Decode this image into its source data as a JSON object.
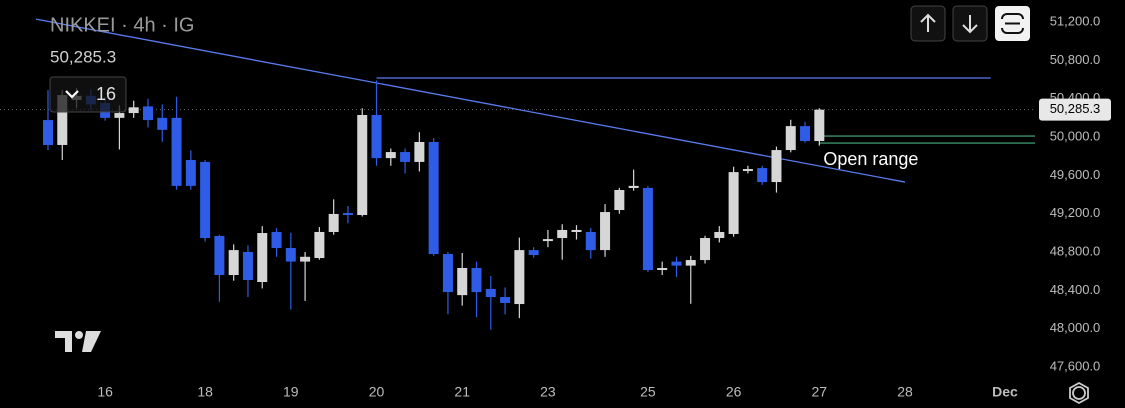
{
  "chart_data": {
    "type": "candlestick",
    "title": "NIKKEI · 4h · IG",
    "last_price": {
      "value": 50285.3,
      "label": "50,285.3"
    },
    "interval_count": "16",
    "x": [
      0,
      1,
      2,
      3,
      4,
      5,
      6,
      7,
      8,
      9,
      10,
      11,
      12,
      13,
      14,
      15,
      16,
      17,
      18,
      19,
      20,
      21,
      22,
      23,
      24,
      25,
      26,
      27,
      28,
      29,
      30,
      31,
      32,
      33,
      34,
      35,
      36,
      37,
      38,
      39,
      40,
      41,
      42,
      43,
      44,
      45,
      46,
      47,
      48,
      49,
      50,
      51,
      52,
      53,
      54
    ],
    "open": [
      50177,
      49917,
      50386,
      50430,
      50355,
      50200,
      50250,
      50320,
      50200,
      50200,
      49760,
      49740,
      48967,
      48560,
      48800,
      48487,
      49009,
      48842,
      48700,
      48737,
      49009,
      49207,
      49186,
      50230,
      49780,
      49843,
      49740,
      49948,
      48779,
      48350,
      48633,
      48414,
      48330,
      48257,
      48820,
      48914,
      48946,
      49009,
      49009,
      48820,
      49238,
      49468,
      49468,
      48612,
      48700,
      48658,
      48716,
      48946,
      48988,
      49645,
      49676,
      49530,
      49864,
      50114,
      49958
    ],
    "high": [
      50490,
      50490,
      50510,
      50500,
      50420,
      50330,
      50380,
      50400,
      50340,
      50420,
      49860,
      49760,
      48980,
      48880,
      48870,
      49070,
      49050,
      49000,
      48800,
      49060,
      49350,
      49280,
      50300,
      50590,
      49880,
      49880,
      50050,
      49990,
      48800,
      48790,
      48700,
      48550,
      48430,
      48950,
      48850,
      49030,
      49090,
      49080,
      49050,
      49300,
      49470,
      49660,
      49490,
      48700,
      48750,
      48760,
      48970,
      49070,
      49690,
      49700,
      49700,
      49900,
      50180,
      50160,
      50300
    ],
    "low": [
      49864,
      49760,
      50300,
      50280,
      50170,
      49870,
      50200,
      50100,
      49950,
      49450,
      49450,
      48910,
      48280,
      48500,
      48330,
      48420,
      48750,
      48200,
      48290,
      48720,
      48980,
      49100,
      49170,
      49700,
      49700,
      49620,
      49640,
      48760,
      48150,
      48240,
      48120,
      47990,
      48150,
      48110,
      48740,
      48850,
      48720,
      48930,
      48730,
      48750,
      49200,
      49440,
      48590,
      48560,
      48540,
      48260,
      48680,
      48900,
      48960,
      49620,
      49500,
      49420,
      49840,
      49940,
      49910
    ],
    "close": [
      49917,
      50438,
      50430,
      50340,
      50200,
      50250,
      50310,
      50177,
      50075,
      49490,
      49490,
      48946,
      48560,
      48820,
      48508,
      48998,
      48842,
      48700,
      48750,
      49009,
      49197,
      49186,
      50230,
      49780,
      49843,
      49740,
      49948,
      48779,
      48382,
      48633,
      48382,
      48330,
      48268,
      48820,
      48768,
      48935,
      49030,
      49030,
      48820,
      49217,
      49447,
      49490,
      48612,
      48633,
      48658,
      48716,
      48946,
      49009,
      49634,
      49666,
      49530,
      49864,
      50114,
      49958,
      50285.3
    ],
    "up_color": "#d6d6d6",
    "down_color": "#2e5ce6",
    "trendline": {
      "x": [
        -0.84,
        60
      ],
      "y": [
        51230,
        49530
      ],
      "color": "#5a7bef"
    },
    "resistance": {
      "x": [
        23,
        66
      ],
      "y": [
        50616,
        50616
      ],
      "color": "#5a7bef"
    },
    "open_range": {
      "label": "Open range",
      "x": [
        54,
        69.1
      ],
      "high": 50010,
      "low": 49937,
      "color": "#3d8f6a"
    },
    "xlim": [
      -3.36,
      69.1
    ],
    "ylim": [
      47172,
      51430
    ],
    "xticks": [
      {
        "value": 4,
        "label": "16"
      },
      {
        "value": 11,
        "label": "18"
      },
      {
        "value": 17,
        "label": "19"
      },
      {
        "value": 23,
        "label": "20"
      },
      {
        "value": 29,
        "label": "21"
      },
      {
        "value": 35,
        "label": "23"
      },
      {
        "value": 42,
        "label": "25"
      },
      {
        "value": 48,
        "label": "26"
      },
      {
        "value": 54,
        "label": "27"
      },
      {
        "value": 60,
        "label": "28"
      },
      {
        "value": 67,
        "label": "Dec"
      }
    ],
    "yticks": [
      {
        "value": 51200,
        "label": "51,200.0"
      },
      {
        "value": 50800,
        "label": "50,800.0"
      },
      {
        "value": 50400,
        "label": "50,400.0"
      },
      {
        "value": 50000,
        "label": "50,000.0"
      },
      {
        "value": 49600,
        "label": "49,600.0"
      },
      {
        "value": 49200,
        "label": "49,200.0"
      },
      {
        "value": 48800,
        "label": "48,800.0"
      },
      {
        "value": 48400,
        "label": "48,400.0"
      },
      {
        "value": 48000,
        "label": "48,000.0"
      },
      {
        "value": 47600,
        "label": "47,600.0"
      }
    ]
  }
}
